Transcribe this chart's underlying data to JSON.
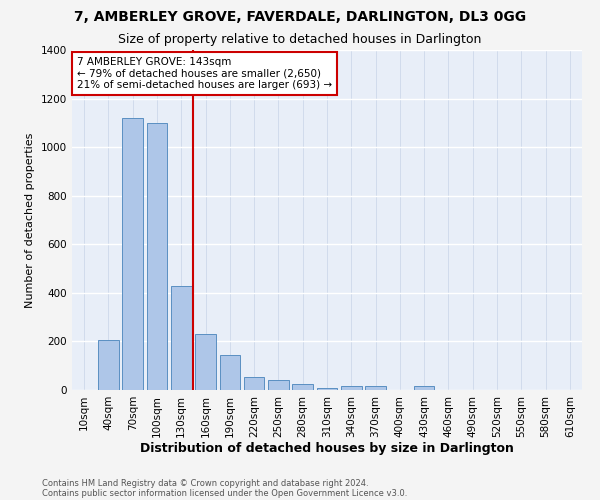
{
  "title1": "7, AMBERLEY GROVE, FAVERDALE, DARLINGTON, DL3 0GG",
  "title2": "Size of property relative to detached houses in Darlington",
  "xlabel": "Distribution of detached houses by size in Darlington",
  "ylabel": "Number of detached properties",
  "footnote1": "Contains HM Land Registry data © Crown copyright and database right 2024.",
  "footnote2": "Contains public sector information licensed under the Open Government Licence v3.0.",
  "categories": [
    "10sqm",
    "40sqm",
    "70sqm",
    "100sqm",
    "130sqm",
    "160sqm",
    "190sqm",
    "220sqm",
    "250sqm",
    "280sqm",
    "310sqm",
    "340sqm",
    "370sqm",
    "400sqm",
    "430sqm",
    "460sqm",
    "490sqm",
    "520sqm",
    "550sqm",
    "580sqm",
    "610sqm"
  ],
  "values": [
    0,
    205,
    1120,
    1100,
    430,
    230,
    145,
    55,
    40,
    25,
    10,
    15,
    15,
    0,
    15,
    0,
    0,
    0,
    0,
    0,
    0
  ],
  "bar_color": "#aec6e8",
  "bar_edge_color": "#5a8fc2",
  "background_color": "#e8eef8",
  "grid_color": "#d0d8e8",
  "red_line_color": "#cc0000",
  "annotation_text": "7 AMBERLEY GROVE: 143sqm\n← 79% of detached houses are smaller (2,650)\n21% of semi-detached houses are larger (693) →",
  "annotation_box_color": "#ffffff",
  "annotation_box_edge_color": "#cc0000",
  "ylim": [
    0,
    1400
  ],
  "yticks": [
    0,
    200,
    400,
    600,
    800,
    1000,
    1200,
    1400
  ],
  "title1_fontsize": 10,
  "title2_fontsize": 9,
  "xlabel_fontsize": 9,
  "ylabel_fontsize": 8,
  "tick_fontsize": 7.5,
  "annotation_fontsize": 7.5,
  "footnote_fontsize": 6
}
